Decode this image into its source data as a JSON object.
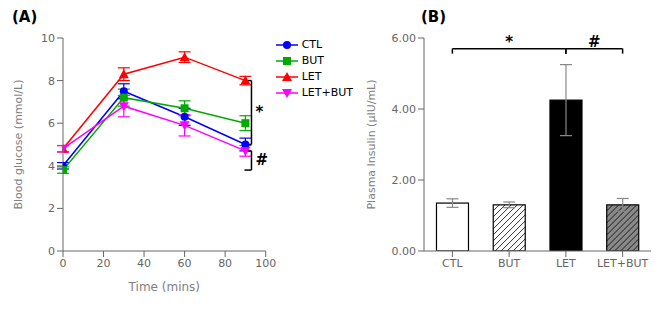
{
  "chart_data": [
    {
      "type": "line",
      "title": "(A)",
      "xlabel": "Time (mins)",
      "ylabel": "Blood glucose (mmol/L)",
      "x": [
        0,
        30,
        60,
        90
      ],
      "series": [
        {
          "name": "CTL",
          "color": "#0000FF",
          "marker": "circle",
          "values": [
            4.0,
            7.5,
            6.3,
            5.0
          ],
          "errors": [
            0.15,
            0.35,
            0.4,
            0.3
          ]
        },
        {
          "name": "BUT",
          "color": "#00AA00",
          "marker": "square",
          "values": [
            3.8,
            7.2,
            6.7,
            6.0
          ],
          "errors": [
            0.15,
            0.4,
            0.35,
            0.35
          ]
        },
        {
          "name": "LET",
          "color": "#FF0000",
          "marker": "triangle-up",
          "values": [
            4.8,
            8.3,
            9.1,
            8.0
          ],
          "errors": [
            0.15,
            0.3,
            0.25,
            0.2
          ]
        },
        {
          "name": "LET+BUT",
          "color": "#FF00FF",
          "marker": "triangle-down",
          "values": [
            4.8,
            6.8,
            5.9,
            4.7
          ],
          "errors": [
            0.15,
            0.5,
            0.5,
            0.25
          ]
        }
      ],
      "xlim": [
        0,
        100
      ],
      "ylim": [
        0,
        10
      ],
      "xticks": [
        0,
        20,
        40,
        60,
        80,
        100
      ],
      "yticks": [
        0,
        2,
        4,
        6,
        8,
        10
      ],
      "legend": "right",
      "grid": false,
      "annotations": [
        {
          "text": "*",
          "x": 93,
          "y_top": 8.0,
          "y_bottom": 5.0
        },
        {
          "text": "#",
          "x": 93,
          "y_top": 4.7,
          "y_bottom": 3.8
        }
      ]
    },
    {
      "type": "bar",
      "title": "(B)",
      "ylabel": "Plasma Insulin (μIU/mL)",
      "categories": [
        "CTL",
        "BUT",
        "LET",
        "LET+BUT"
      ],
      "values": [
        1.35,
        1.3,
        4.25,
        1.3
      ],
      "errors": [
        0.12,
        0.08,
        1.0,
        0.18
      ],
      "colors": [
        "white",
        "white",
        "black",
        "#888888"
      ],
      "ylim": [
        0,
        6.0
      ],
      "yticks": [
        {
          "value": 0.0,
          "label": "0.00"
        },
        {
          "value": 2.0,
          "label": "2.00"
        },
        {
          "value": 4.0,
          "label": "4.00"
        },
        {
          "value": 6.0,
          "label": "6.00"
        }
      ],
      "grid": false,
      "annotations": [
        {
          "text": "*",
          "from": "CTL",
          "to": "LET",
          "y": 5.7
        },
        {
          "text": "#",
          "from": "LET",
          "to": "LET+BUT",
          "y": 5.7
        }
      ]
    }
  ]
}
